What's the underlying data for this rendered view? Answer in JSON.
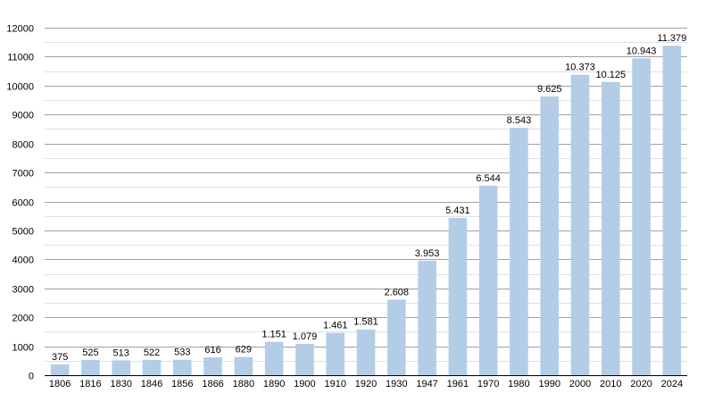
{
  "chart_data": {
    "type": "bar",
    "categories": [
      "1806",
      "1816",
      "1830",
      "1846",
      "1856",
      "1866",
      "1880",
      "1890",
      "1900",
      "1910",
      "1920",
      "1930",
      "1947",
      "1961",
      "1970",
      "1980",
      "1990",
      "2000",
      "2010",
      "2020",
      "2024"
    ],
    "values": [
      375,
      525,
      513,
      522,
      533,
      616,
      629,
      1151,
      1079,
      1461,
      1581,
      2608,
      3953,
      5431,
      6544,
      8543,
      9625,
      10373,
      10125,
      10943,
      11379
    ],
    "data_labels": [
      "375",
      "525",
      "513",
      "522",
      "533",
      "616",
      "629",
      "1.151",
      "1.079",
      "1.461",
      "1.581",
      "2.608",
      "3.953",
      "5.431",
      "6.544",
      "8.543",
      "9.625",
      "10.373",
      "10.125",
      "10.943",
      "11.379"
    ],
    "y_ticks": [
      0,
      1000,
      2000,
      3000,
      4000,
      5000,
      6000,
      7000,
      8000,
      9000,
      10000,
      11000,
      12000
    ],
    "ylim": [
      0,
      12000
    ],
    "grid": "on",
    "legend": "none",
    "colors": {
      "bar": "#b3cde6"
    }
  }
}
